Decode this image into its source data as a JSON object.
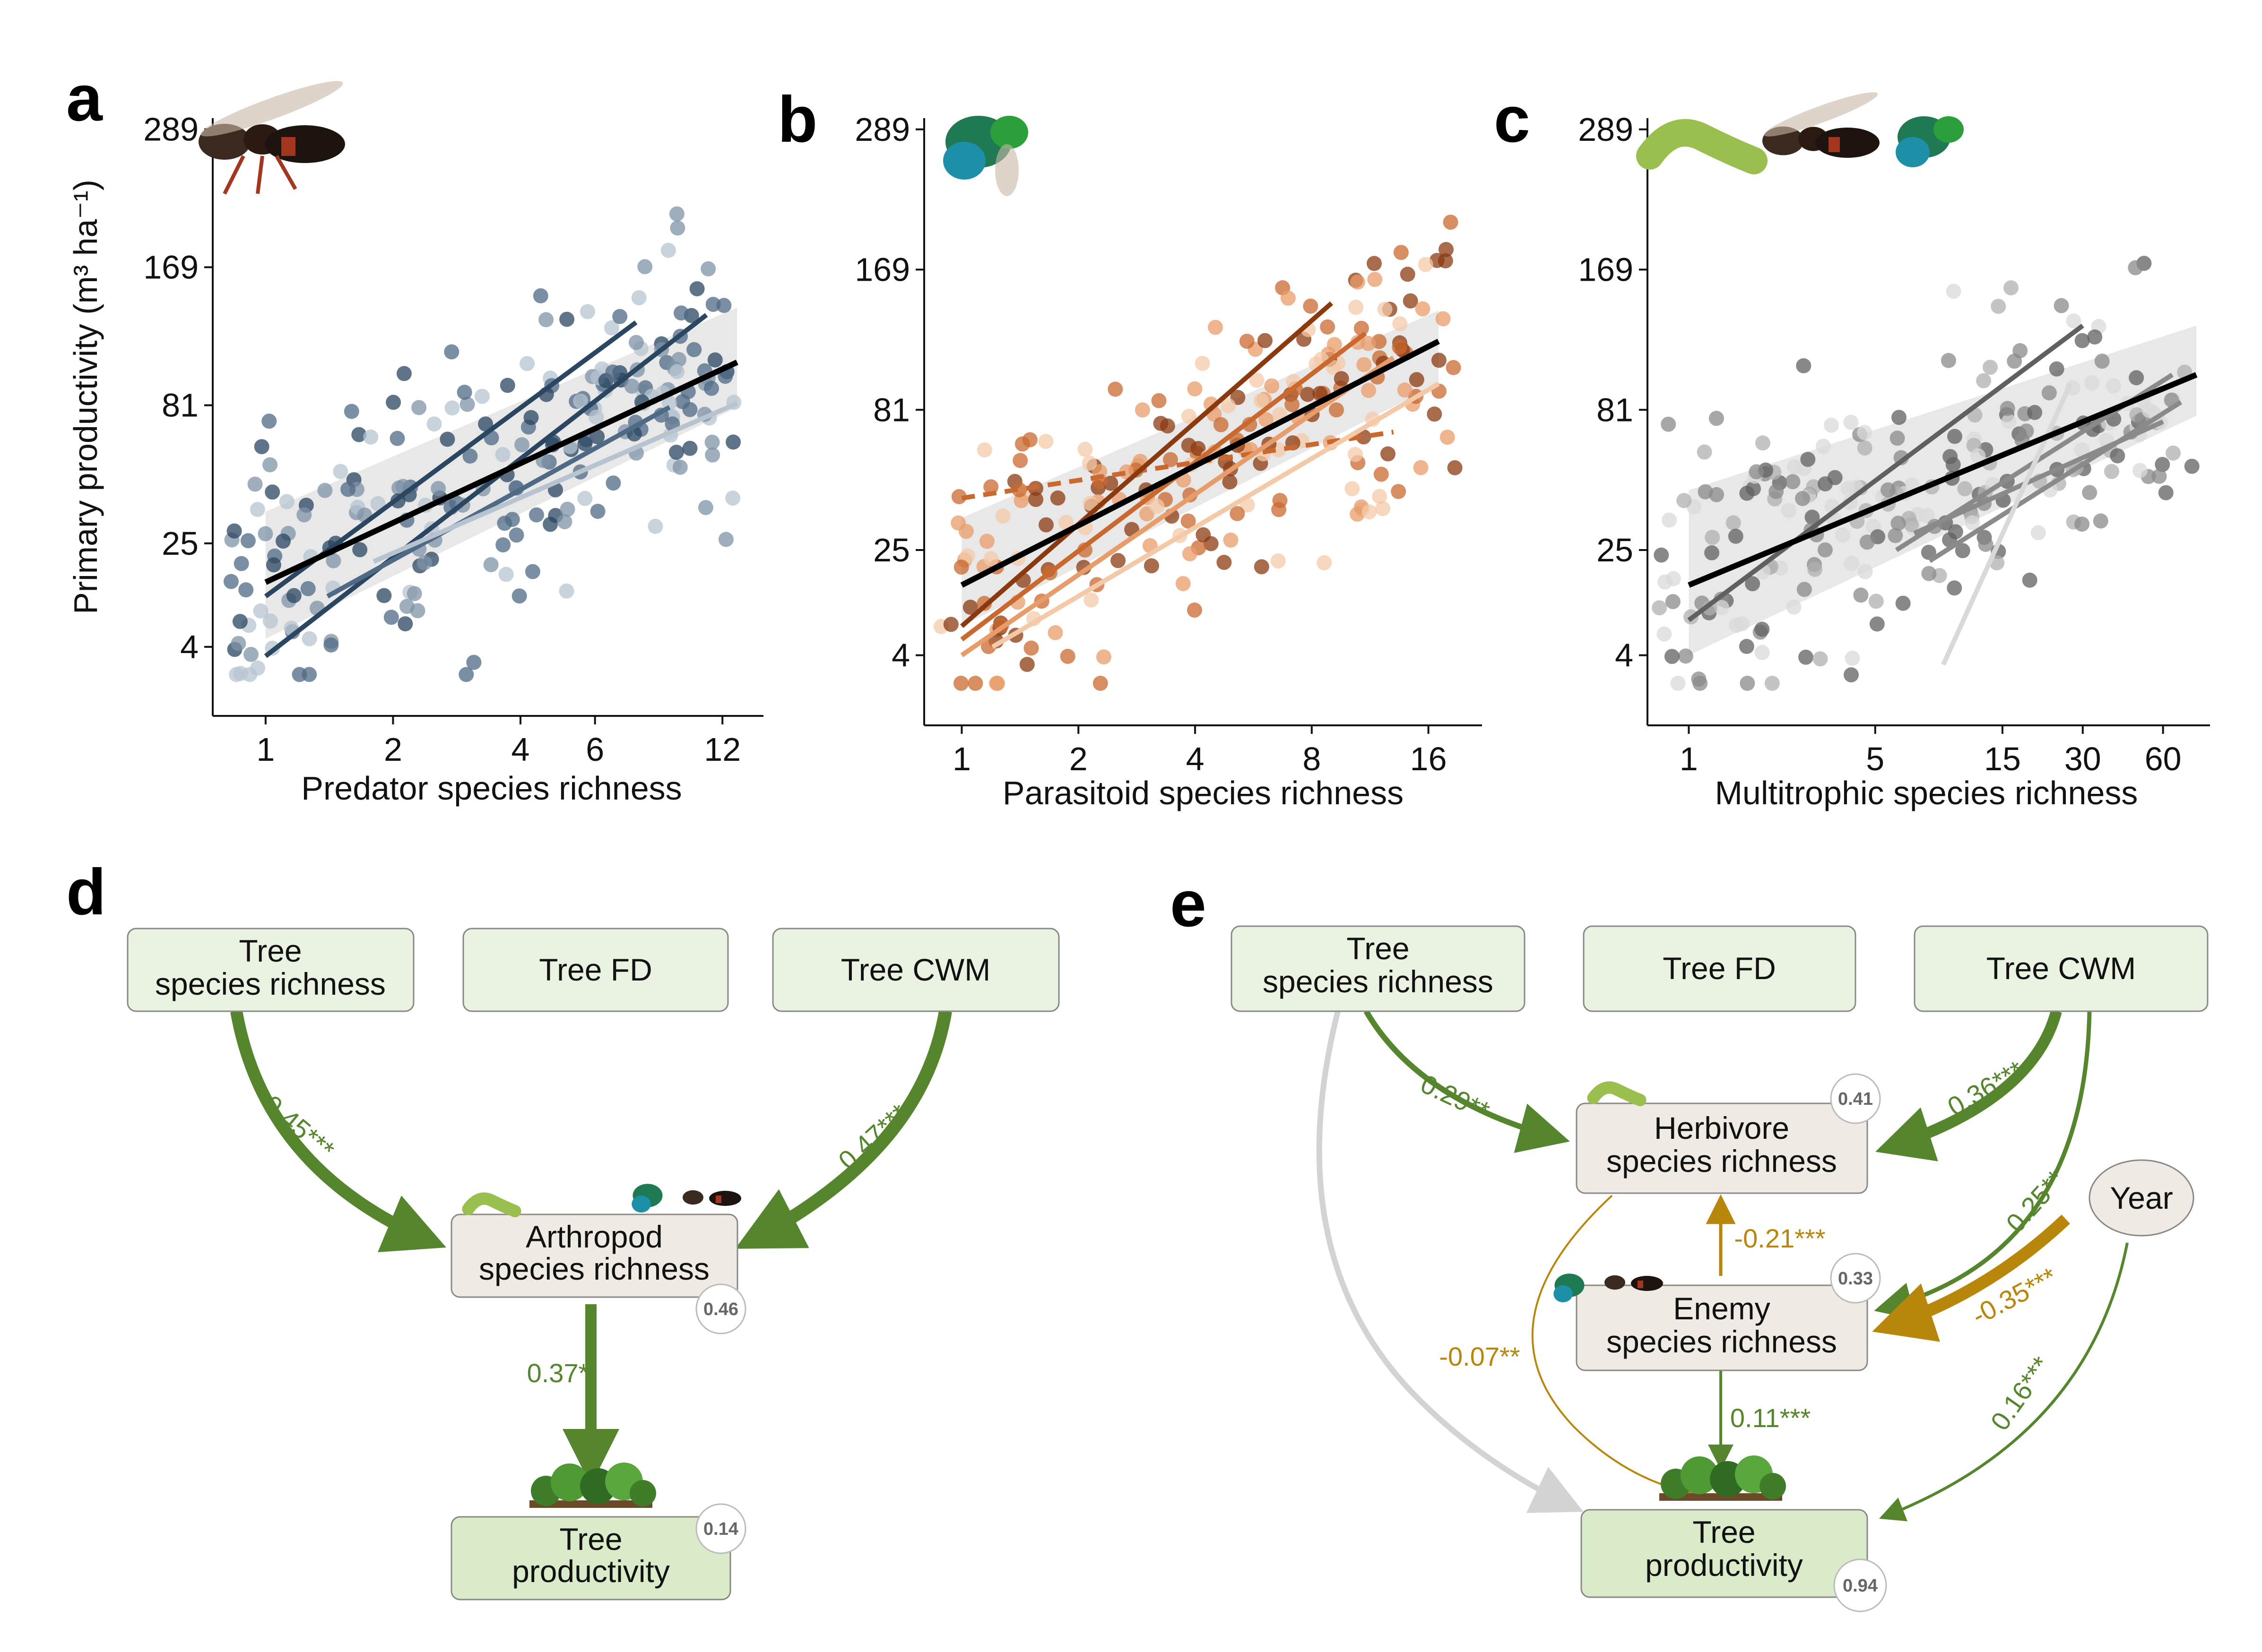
{
  "figure": {
    "panel_labels": [
      "a",
      "b",
      "c",
      "d",
      "e"
    ],
    "colors": {
      "predator": [
        "#b7c4d0",
        "#7f93a7",
        "#4f6a85",
        "#2a4660"
      ],
      "parasitoid": [
        "#f4c9a8",
        "#e89c6a",
        "#c9682f",
        "#8b3a10"
      ],
      "multitrophic": [
        "#d9d9d9",
        "#b0b0b0",
        "#8a8a8a",
        "#606060"
      ],
      "overall": "#000000",
      "positive": "#55862d",
      "negative": "#b8860b",
      "nonsig": "#d3d3d3",
      "box_fill_tree": "#eaf3e1",
      "box_fill_arthropod": "#efebe4",
      "box_fill_productivity": "#d9ebc9"
    },
    "icons": {
      "a": [
        "wasp-icon"
      ],
      "b": [
        "cuckoo-wasp-icon"
      ],
      "c": [
        "caterpillar-icon",
        "wasp-icon",
        "cuckoo-wasp-icon"
      ],
      "d": [
        "caterpillar-icon",
        "cuckoo-wasp-icon",
        "wasp-icon",
        "trees-icon"
      ],
      "e": [
        "caterpillar-icon",
        "cuckoo-wasp-icon",
        "wasp-icon",
        "trees-icon"
      ]
    }
  },
  "chart_data": [
    {
      "panel": "a",
      "type": "scatter",
      "xlabel": "Predator species richness",
      "ylabel": "Primary productivity (m³ ha⁻¹)",
      "x_scale": "log",
      "y_scale": "sqrt",
      "xticks": [
        1,
        2,
        4,
        6,
        12
      ],
      "yticks": [
        4,
        25,
        81,
        169,
        289
      ],
      "xlim": [
        0.75,
        15
      ],
      "ylim": [
        0,
        300
      ],
      "fit_lines": [
        {
          "x": [
            1,
            13
          ],
          "y": [
            15,
            105
          ],
          "style": "overall"
        },
        {
          "x": [
            1,
            11
          ],
          "y": [
            3,
            135
          ],
          "shade": 3
        },
        {
          "x": [
            1,
            7.5
          ],
          "y": [
            12,
            130
          ],
          "shade": 3
        },
        {
          "x": [
            1.4,
            9
          ],
          "y": [
            12,
            80
          ],
          "shade": 2
        },
        {
          "x": [
            1.8,
            13
          ],
          "y": [
            20,
            82
          ],
          "shade": 0
        }
      ],
      "confidence_band": {
        "x": [
          1,
          13
        ],
        "upper": [
          35,
          140
        ],
        "lower": [
          5,
          80
        ]
      }
    },
    {
      "panel": "b",
      "type": "scatter",
      "xlabel": "Parasitoid species richness",
      "ylabel": "",
      "x_scale": "log",
      "y_scale": "sqrt",
      "xticks": [
        1,
        2,
        4,
        8,
        16
      ],
      "yticks": [
        4,
        25,
        81,
        169,
        289
      ],
      "xlim": [
        0.8,
        22
      ],
      "ylim": [
        0,
        300
      ],
      "fit_lines": [
        {
          "x": [
            1,
            17
          ],
          "y": [
            16,
            120
          ],
          "style": "overall"
        },
        {
          "x": [
            1,
            13
          ],
          "y": [
            42,
            70
          ],
          "shade": 2,
          "dashed": true
        },
        {
          "x": [
            1,
            9
          ],
          "y": [
            8,
            145
          ],
          "shade": 3
        },
        {
          "x": [
            1,
            11
          ],
          "y": [
            6,
            125
          ],
          "shade": 2
        },
        {
          "x": [
            1,
            13
          ],
          "y": [
            4,
            110
          ],
          "shade": 1
        },
        {
          "x": [
            1.2,
            17
          ],
          "y": [
            5,
            95
          ],
          "shade": 0
        }
      ],
      "confidence_band": {
        "x": [
          1,
          17
        ],
        "upper": [
          35,
          140
        ],
        "lower": [
          8,
          95
        ]
      }
    },
    {
      "panel": "c",
      "type": "scatter",
      "xlabel": "Multitrophic species richness",
      "ylabel": "",
      "x_scale": "log",
      "y_scale": "sqrt",
      "xticks": [
        1,
        5,
        15,
        30,
        60
      ],
      "yticks": [
        4,
        25,
        81,
        169,
        289
      ],
      "xlim": [
        0.7,
        90
      ],
      "ylim": [
        0,
        300
      ],
      "fit_lines": [
        {
          "x": [
            1,
            80
          ],
          "y": [
            16,
            100
          ],
          "style": "overall"
        },
        {
          "x": [
            1,
            30
          ],
          "y": [
            9,
            130
          ],
          "shade": 3
        },
        {
          "x": [
            6,
            65
          ],
          "y": [
            25,
            100
          ],
          "shade": 2
        },
        {
          "x": [
            8,
            70
          ],
          "y": [
            22,
            85
          ],
          "shade": 2
        },
        {
          "x": [
            7,
            60
          ],
          "y": [
            30,
            75
          ],
          "shade": 2
        },
        {
          "x": [
            9,
            27
          ],
          "y": [
            3,
            95
          ],
          "shade": 0
        }
      ],
      "confidence_band": {
        "x": [
          1,
          80
        ],
        "upper": [
          45,
          130
        ],
        "lower": [
          4,
          78
        ]
      }
    },
    {
      "panel": "d",
      "type": "diagram",
      "nodes": {
        "tree_sr": "Tree\nspecies richness",
        "tree_fd": "Tree FD",
        "tree_cwm": "Tree CWM",
        "arthropod_sr": "Arthropod\nspecies richness",
        "productivity": "Tree\nproductivity"
      },
      "r2": {
        "arthropod_sr": "0.46",
        "productivity": "0.14"
      },
      "paths": [
        {
          "from": "tree_sr",
          "to": "arthropod_sr",
          "label": "0.45***",
          "sign": "positive"
        },
        {
          "from": "tree_cwm",
          "to": "arthropod_sr",
          "label": "0.47***",
          "sign": "positive"
        },
        {
          "from": "arthropod_sr",
          "to": "productivity",
          "label": "0.37*",
          "sign": "positive"
        }
      ]
    },
    {
      "panel": "e",
      "type": "diagram",
      "nodes": {
        "tree_sr": "Tree\nspecies richness",
        "tree_fd": "Tree FD",
        "tree_cwm": "Tree CWM",
        "herbivore_sr": "Herbivore\nspecies richness",
        "enemy_sr": "Enemy\nspecies richness",
        "year": "Year",
        "productivity": "Tree\nproductivity"
      },
      "r2": {
        "herbivore_sr": "0.41",
        "enemy_sr": "0.33",
        "productivity": "0.94"
      },
      "paths": [
        {
          "from": "tree_sr",
          "to": "herbivore_sr",
          "label": "0.29**",
          "sign": "positive"
        },
        {
          "from": "tree_cwm",
          "to": "herbivore_sr",
          "label": "0.36***",
          "sign": "positive"
        },
        {
          "from": "tree_cwm",
          "to": "enemy_sr",
          "label": "0.25**",
          "sign": "positive"
        },
        {
          "from": "enemy_sr",
          "to": "herbivore_sr",
          "label": "-0.21***",
          "sign": "negative"
        },
        {
          "from": "year",
          "to": "enemy_sr",
          "label": "-0.35***",
          "sign": "negative"
        },
        {
          "from": "herbivore_sr",
          "to": "productivity",
          "label": "-0.07**",
          "sign": "negative"
        },
        {
          "from": "enemy_sr",
          "to": "productivity",
          "label": "0.11***",
          "sign": "positive"
        },
        {
          "from": "year",
          "to": "productivity",
          "label": "0.16***",
          "sign": "positive"
        },
        {
          "from": "tree_sr",
          "to": "productivity",
          "label": "",
          "sign": "nonsig"
        }
      ]
    }
  ]
}
